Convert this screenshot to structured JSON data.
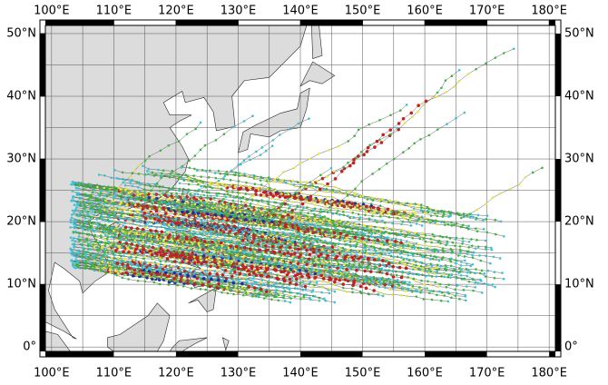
{
  "map": {
    "lon_range": [
      99,
      181
    ],
    "lat_range": [
      -0.7,
      51.3
    ],
    "lon_ticks": [
      {
        "value": 100,
        "label": "100°E"
      },
      {
        "value": 110,
        "label": "110°E"
      },
      {
        "value": 120,
        "label": "120°E"
      },
      {
        "value": 130,
        "label": "130°E"
      },
      {
        "value": 140,
        "label": "140°E"
      },
      {
        "value": 150,
        "label": "150°E"
      },
      {
        "value": 160,
        "label": "160°E"
      },
      {
        "value": 170,
        "label": "170°E"
      },
      {
        "value": 180,
        "label": "180°E"
      }
    ],
    "lat_ticks": [
      {
        "value": 0,
        "label": "0°"
      },
      {
        "value": 10,
        "label": "10°N"
      },
      {
        "value": 20,
        "label": "20°N"
      },
      {
        "value": 30,
        "label": "30°N"
      },
      {
        "value": 40,
        "label": "40°N"
      },
      {
        "value": 50,
        "label": "50°N"
      }
    ]
  }
}
